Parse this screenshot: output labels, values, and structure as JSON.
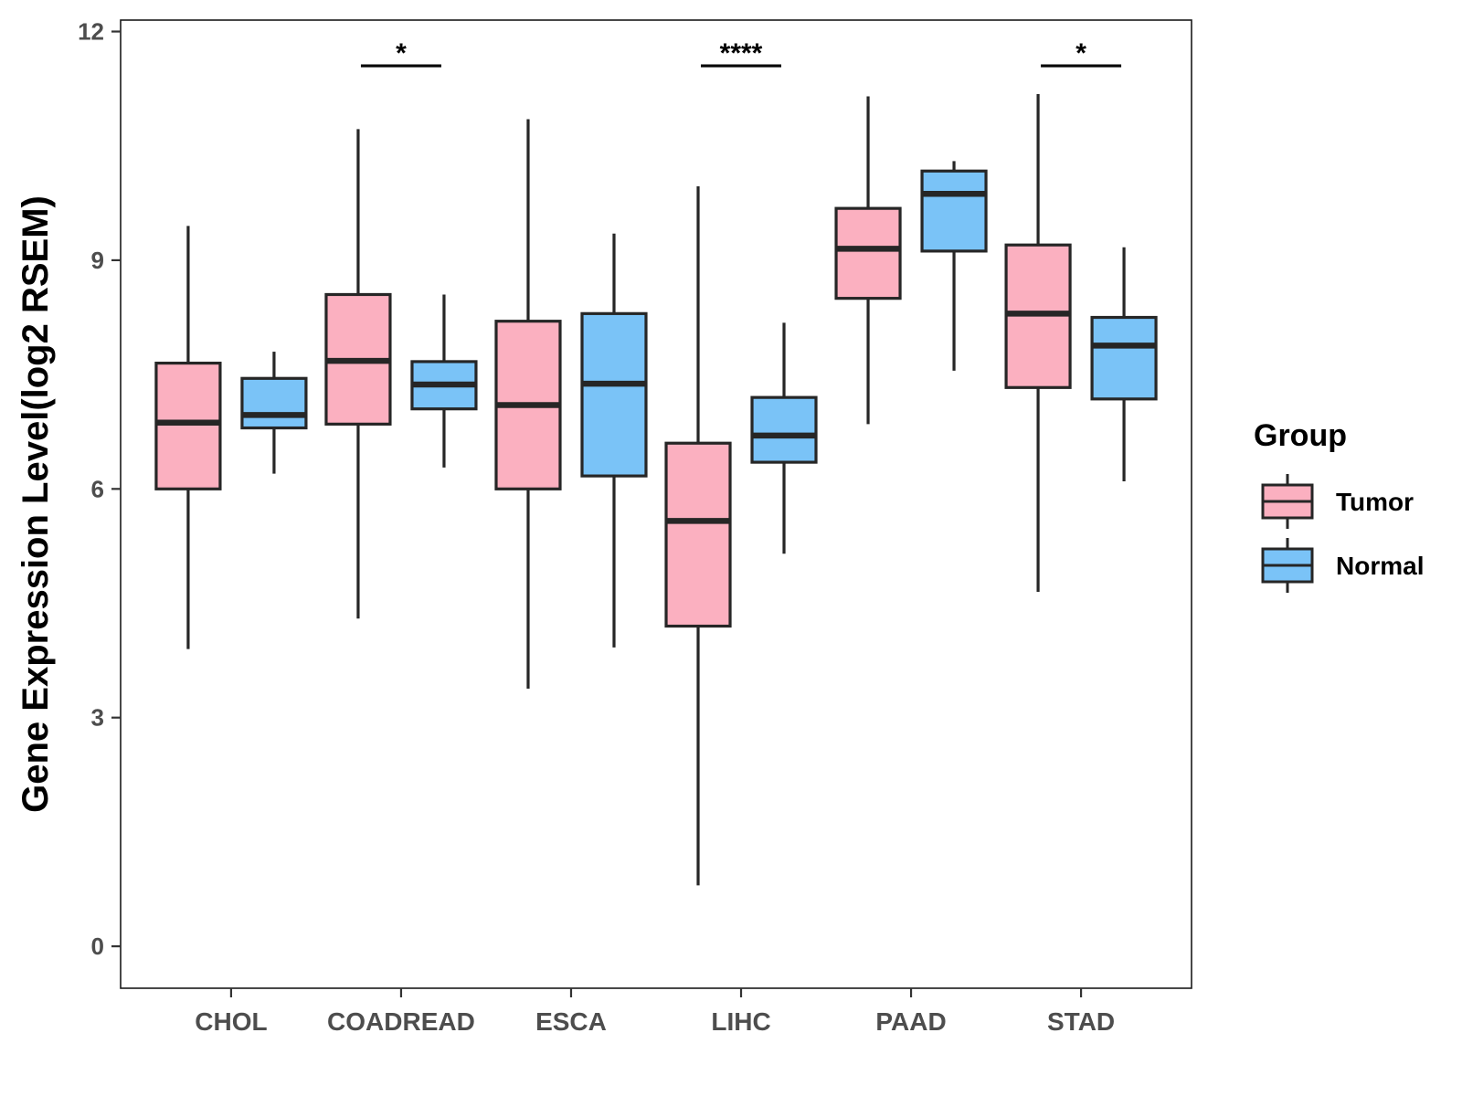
{
  "chart_data": {
    "type": "boxplot",
    "title": "",
    "xlabel": "",
    "ylabel": "Gene Expression Level(log2 RSEM)",
    "ylim": [
      -0.55,
      12.15
    ],
    "yticks": [
      0,
      3,
      6,
      9,
      12
    ],
    "ytick_labels": [
      "0",
      "3",
      "6",
      "9",
      "12"
    ],
    "grid": false,
    "categories": [
      "CHOL",
      "COADREAD",
      "ESCA",
      "LIHC",
      "PAAD",
      "STAD"
    ],
    "legend": {
      "title": "Group",
      "position": "right",
      "entries": [
        "Tumor",
        "Normal"
      ]
    },
    "series": [
      {
        "name": "Tumor",
        "color": "#FBB0C0",
        "boxes": [
          {
            "category": "CHOL",
            "whisker_low": 3.9,
            "q1": 6.0,
            "median": 6.87,
            "q3": 7.65,
            "whisker_high": 9.45
          },
          {
            "category": "COADREAD",
            "whisker_low": 4.3,
            "q1": 6.85,
            "median": 7.68,
            "q3": 8.55,
            "whisker_high": 10.72
          },
          {
            "category": "ESCA",
            "whisker_low": 3.38,
            "q1": 6.0,
            "median": 7.1,
            "q3": 8.2,
            "whisker_high": 10.85
          },
          {
            "category": "LIHC",
            "whisker_low": 0.8,
            "q1": 4.2,
            "median": 5.58,
            "q3": 6.6,
            "whisker_high": 9.97
          },
          {
            "category": "PAAD",
            "whisker_low": 6.85,
            "q1": 8.5,
            "median": 9.15,
            "q3": 9.68,
            "whisker_high": 11.15
          },
          {
            "category": "STAD",
            "whisker_low": 4.65,
            "q1": 7.33,
            "median": 8.3,
            "q3": 9.2,
            "whisker_high": 11.18
          }
        ]
      },
      {
        "name": "Normal",
        "color": "#7AC3F7",
        "boxes": [
          {
            "category": "CHOL",
            "whisker_low": 6.2,
            "q1": 6.8,
            "median": 6.97,
            "q3": 7.45,
            "whisker_high": 7.8
          },
          {
            "category": "COADREAD",
            "whisker_low": 6.28,
            "q1": 7.05,
            "median": 7.37,
            "q3": 7.67,
            "whisker_high": 8.55
          },
          {
            "category": "ESCA",
            "whisker_low": 3.92,
            "q1": 6.17,
            "median": 7.38,
            "q3": 8.3,
            "whisker_high": 9.35
          },
          {
            "category": "LIHC",
            "whisker_low": 5.15,
            "q1": 6.35,
            "median": 6.7,
            "q3": 7.2,
            "whisker_high": 8.18
          },
          {
            "category": "PAAD",
            "whisker_low": 7.55,
            "q1": 9.12,
            "median": 9.87,
            "q3": 10.17,
            "whisker_high": 10.3
          },
          {
            "category": "STAD",
            "whisker_low": 6.1,
            "q1": 7.18,
            "median": 7.88,
            "q3": 8.25,
            "whisker_high": 9.17
          }
        ]
      }
    ],
    "annotations": [
      {
        "category": "COADREAD",
        "label": "*",
        "y": 11.55
      },
      {
        "category": "LIHC",
        "label": "****",
        "y": 11.55
      },
      {
        "category": "STAD",
        "label": "*",
        "y": 11.55
      }
    ]
  }
}
